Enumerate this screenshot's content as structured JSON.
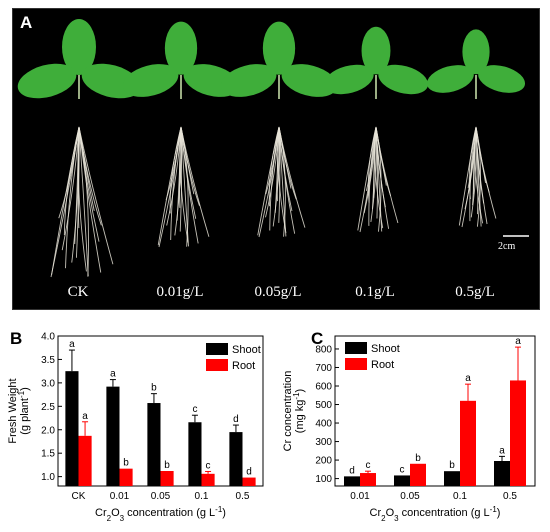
{
  "photo": {
    "panel_label": "A",
    "treatments": [
      "CK",
      "0.01g/L",
      "0.05g/L",
      "0.1g/L",
      "0.5g/L"
    ],
    "scale_bar": "2cm",
    "leaf_color": "#3fae3a",
    "root_color": "#e8e4d8"
  },
  "chart_data": [
    {
      "panel_label": "B",
      "type": "bar",
      "categories": [
        "CK",
        "0.01",
        "0.05",
        "0.1",
        "0.5"
      ],
      "series": [
        {
          "name": "Shoot",
          "color": "#000000",
          "values": [
            3.25,
            2.92,
            2.57,
            2.16,
            1.95
          ],
          "errors": [
            0.45,
            0.15,
            0.2,
            0.15,
            0.15
          ],
          "letters": [
            "a",
            "a",
            "b",
            "c",
            "d"
          ]
        },
        {
          "name": "Root",
          "color": "#ff0000",
          "values": [
            1.87,
            1.17,
            1.12,
            1.06,
            0.98
          ],
          "errors": [
            0.3,
            0.0,
            0.0,
            0.05,
            0.0
          ],
          "letters": [
            "a",
            "b",
            "b",
            "c",
            "d"
          ]
        }
      ],
      "ylabel_main": "Fresh Weight",
      "ylabel_unit": "(g plant",
      "ylabel_exp": "-1",
      "ylabel_close": ")",
      "xlabel_parts": [
        "Cr",
        "2",
        "O",
        "3",
        "concentration (g L",
        "-1",
        ")"
      ],
      "ylim": [
        0.8,
        4.0
      ],
      "ybase": 0.8,
      "yticks": [
        1.0,
        1.5,
        2.0,
        2.5,
        3.0,
        3.5,
        4.0
      ],
      "ytick_labels": [
        "1.0",
        "1.5",
        "2.0",
        "2.5",
        "3.0",
        "3.5",
        "4.0"
      ],
      "legend_position": "top-right"
    },
    {
      "panel_label": "C",
      "type": "bar",
      "categories": [
        "0.01",
        "0.05",
        "0.1",
        "0.5"
      ],
      "series": [
        {
          "name": "Shoot",
          "color": "#000000",
          "values": [
            112,
            117,
            140,
            195
          ],
          "errors": [
            0,
            0,
            0,
            25
          ],
          "letters": [
            "d",
            "c",
            "b",
            "a"
          ]
        },
        {
          "name": "Root",
          "color": "#ff0000",
          "values": [
            130,
            180,
            520,
            630
          ],
          "errors": [
            10,
            0,
            90,
            180
          ],
          "letters": [
            "c",
            "b",
            "a",
            "a"
          ]
        }
      ],
      "ylabel_main": "Cr concentration",
      "ylabel_unit": "(mg kg",
      "ylabel_exp": "-1",
      "ylabel_close": ")",
      "xlabel_parts": [
        "Cr",
        "2",
        "O",
        "3",
        "concentration (g L",
        "-1",
        ")"
      ],
      "ylim": [
        60,
        870
      ],
      "ybase": 60,
      "yticks": [
        100,
        200,
        300,
        400,
        500,
        600,
        700,
        800
      ],
      "ytick_labels": [
        "100",
        "200",
        "300",
        "400",
        "500",
        "600",
        "700",
        "800"
      ],
      "legend_position": "top-left"
    }
  ]
}
